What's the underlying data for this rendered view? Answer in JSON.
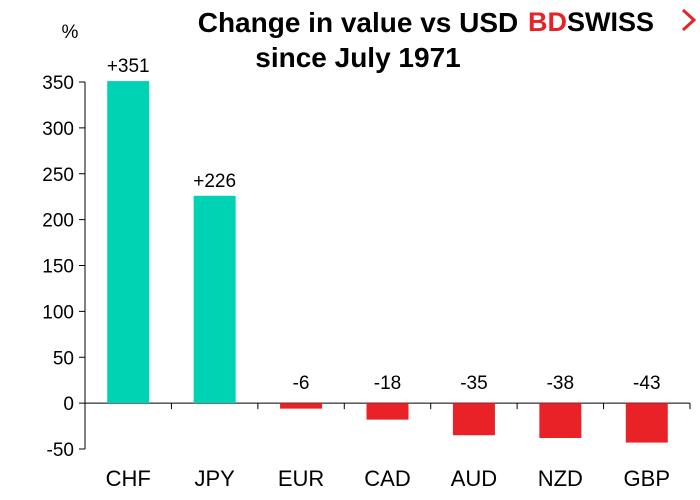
{
  "chart_data": {
    "type": "bar",
    "title_lines": [
      "Change in value vs USD",
      "since July 1971"
    ],
    "ylabel": "%",
    "categories": [
      "CHF",
      "JPY",
      "EUR",
      "CAD",
      "AUD",
      "NZD",
      "GBP"
    ],
    "values": [
      351,
      226,
      -6,
      -18,
      -35,
      -38,
      -43
    ],
    "data_labels": [
      "+351",
      "+226",
      "-6",
      "-18",
      "-35",
      "-38",
      "-43"
    ],
    "ylim": [
      -50,
      350
    ],
    "yticks": [
      -50,
      0,
      50,
      100,
      150,
      200,
      250,
      300,
      350
    ],
    "grid": false,
    "legend": false,
    "colors": {
      "positive": "#00d3b4",
      "negative": "#e82227"
    }
  },
  "logo": {
    "part1": "BD",
    "part2": "SWISS",
    "part1_color": "#e82227",
    "part2_color": "#000000"
  }
}
